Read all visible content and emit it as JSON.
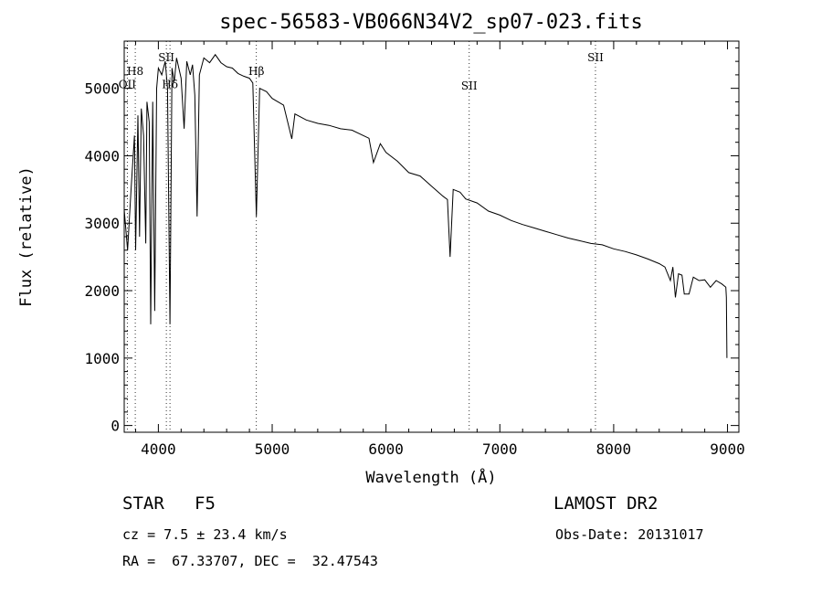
{
  "chart_data": {
    "type": "line",
    "title": "spec-56583-VB066N34V2_sp07-023.fits",
    "xlabel": "Wavelength (Å)",
    "ylabel": "Flux (relative)",
    "xlim": [
      3700,
      9100
    ],
    "ylim": [
      -100,
      5700
    ],
    "x_ticks": [
      4000,
      5000,
      6000,
      7000,
      8000,
      9000
    ],
    "x_tick_labels": [
      "4000",
      "5000",
      "6000",
      "7000",
      "8000",
      "9000"
    ],
    "y_ticks": [
      0,
      1000,
      2000,
      3000,
      4000,
      5000
    ],
    "y_tick_labels": [
      "0",
      "1000",
      "2000",
      "3000",
      "4000",
      "5000"
    ],
    "grid": false,
    "series": [
      {
        "x": [
          3700,
          3730,
          3760,
          3790,
          3800,
          3820,
          3835,
          3850,
          3870,
          3889,
          3900,
          3920,
          3933,
          3950,
          3968,
          3985,
          4000,
          4030,
          4060,
          4080,
          4102,
          4120,
          4140,
          4160,
          4180,
          4200,
          4226,
          4250,
          4280,
          4300,
          4320,
          4340,
          4360,
          4400,
          4450,
          4500,
          4550,
          4600,
          4650,
          4700,
          4750,
          4800,
          4830,
          4861,
          4890,
          4950,
          5000,
          5100,
          5172,
          5200,
          5300,
          5400,
          5500,
          5600,
          5700,
          5800,
          5850,
          5890,
          5950,
          6000,
          6100,
          6200,
          6300,
          6400,
          6500,
          6540,
          6563,
          6590,
          6650,
          6700,
          6800,
          6900,
          7000,
          7100,
          7200,
          7300,
          7400,
          7500,
          7600,
          7700,
          7800,
          7900,
          8000,
          8100,
          8200,
          8300,
          8400,
          8450,
          8498,
          8520,
          8542,
          8570,
          8600,
          8620,
          8662,
          8700,
          8750,
          8800,
          8850,
          8900,
          8950,
          8985,
          8990,
          8995
        ],
        "y": [
          3200,
          2600,
          3500,
          4300,
          2600,
          4600,
          2800,
          4700,
          4300,
          2700,
          4800,
          4500,
          1500,
          4800,
          1700,
          5000,
          5300,
          5200,
          5400,
          5000,
          1500,
          5300,
          5100,
          5450,
          5300,
          5150,
          4400,
          5400,
          5200,
          5350,
          4900,
          3100,
          5200,
          5450,
          5380,
          5500,
          5380,
          5320,
          5300,
          5220,
          5180,
          5150,
          5080,
          3100,
          5000,
          4950,
          4850,
          4750,
          4250,
          4620,
          4530,
          4480,
          4450,
          4400,
          4380,
          4300,
          4260,
          3900,
          4180,
          4050,
          3920,
          3750,
          3700,
          3550,
          3400,
          3350,
          2500,
          3500,
          3460,
          3360,
          3300,
          3180,
          3120,
          3040,
          2980,
          2930,
          2880,
          2830,
          2780,
          2740,
          2700,
          2680,
          2620,
          2580,
          2530,
          2470,
          2400,
          2350,
          2150,
          2350,
          1900,
          2250,
          2230,
          1950,
          1950,
          2200,
          2150,
          2160,
          2050,
          2150,
          2100,
          2050,
          1900,
          1000
        ]
      }
    ],
    "line_labels": [
      {
        "text": "H8",
        "x": 3797,
        "y": 5200
      },
      {
        "text": "OII",
        "x": 3727,
        "y": 5000
      },
      {
        "text": "SII",
        "x": 4070,
        "y": 5400
      },
      {
        "text": "Hδ",
        "x": 4102,
        "y": 5000
      },
      {
        "text": "Hβ",
        "x": 4861,
        "y": 5200
      },
      {
        "text": "SII",
        "x": 6731,
        "y": 4980
      },
      {
        "text": "SII",
        "x": 7840,
        "y": 5400
      }
    ],
    "line_markers": [
      3727,
      3797,
      4070,
      4102,
      4861,
      6731,
      7840
    ]
  },
  "info": {
    "object_class": "STAR",
    "subclass": "F5",
    "redshift": "cz = 7.5 ± 23.4 km/s",
    "coords": "RA =  67.33707, DEC =  32.47543",
    "survey": "LAMOST DR2",
    "obs_date": "Obs-Date: 20131017"
  }
}
